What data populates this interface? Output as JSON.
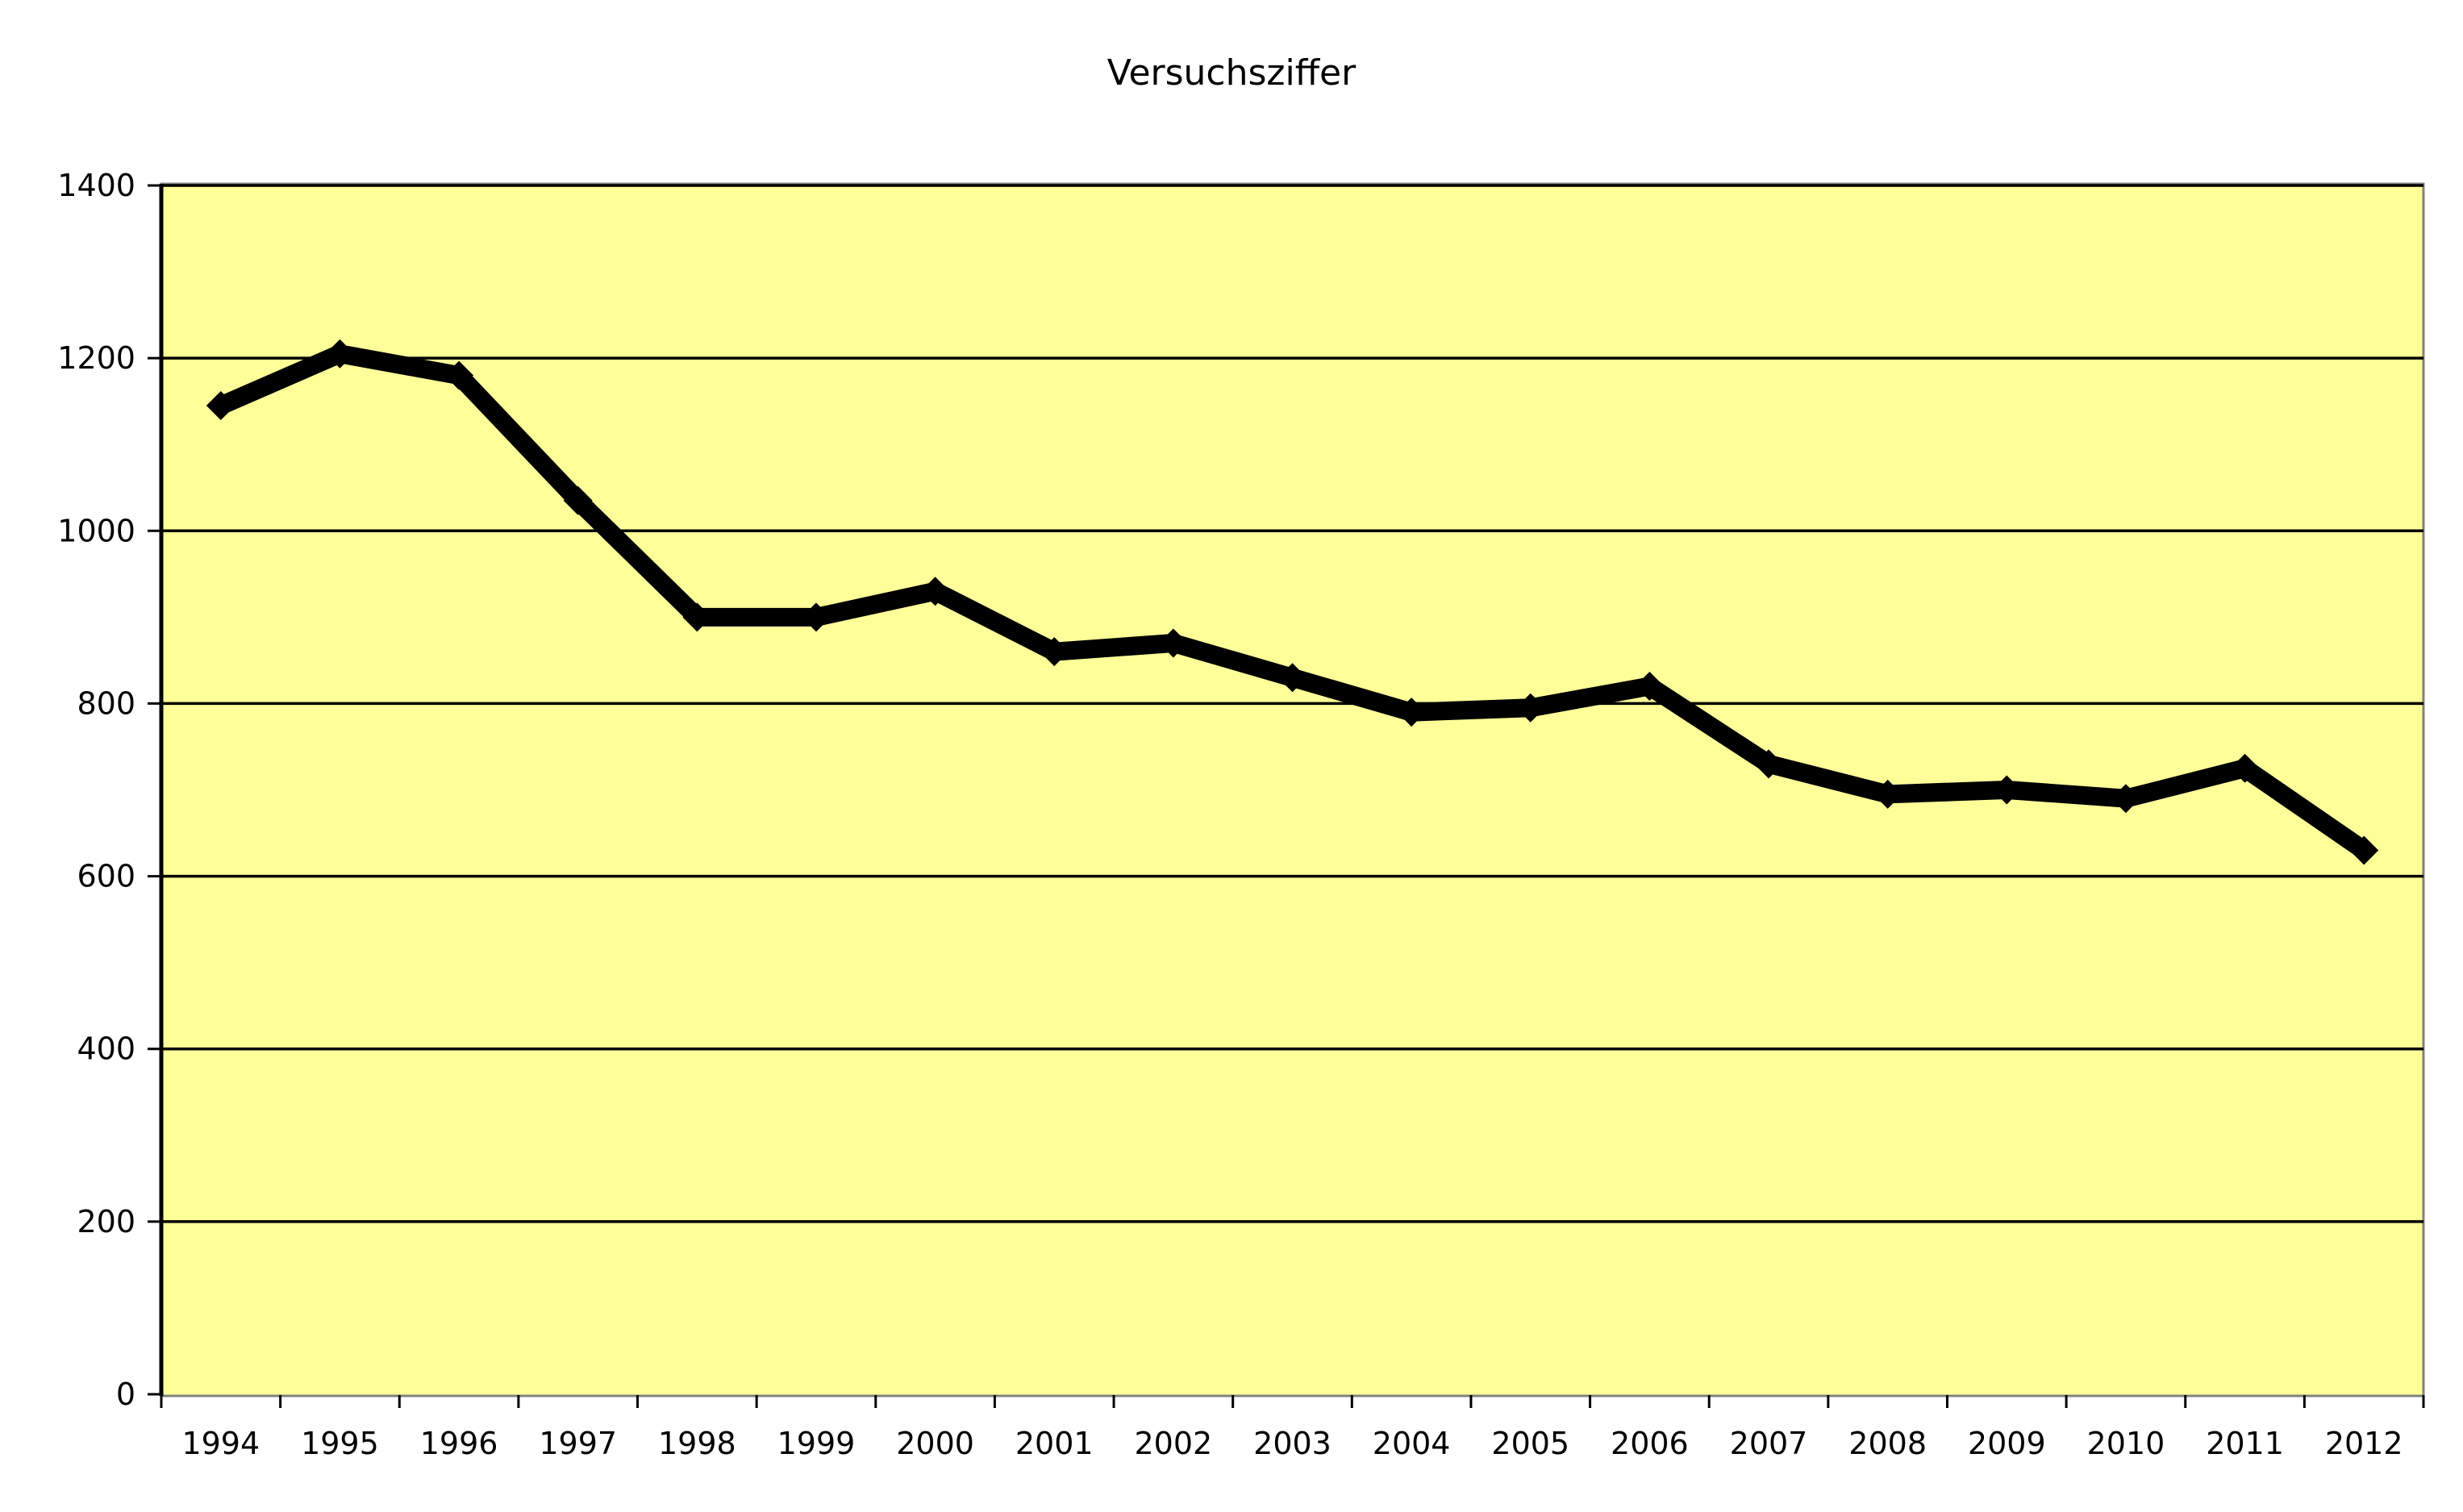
{
  "chart_data": {
    "type": "line",
    "title": "Versuchsziffer",
    "categories": [
      "1994",
      "1995",
      "1996",
      "1997",
      "1998",
      "1999",
      "2000",
      "2001",
      "2002",
      "2003",
      "2004",
      "2005",
      "2006",
      "2007",
      "2008",
      "2009",
      "2010",
      "2011",
      "2012"
    ],
    "values": [
      1145,
      1205,
      1180,
      1035,
      900,
      900,
      930,
      860,
      870,
      830,
      790,
      795,
      820,
      730,
      695,
      700,
      690,
      725,
      630
    ],
    "xlabel": "",
    "ylabel": "",
    "ylim": [
      0,
      1400
    ],
    "yticks": [
      0,
      200,
      400,
      600,
      800,
      1000,
      1200,
      1400
    ],
    "grid": "horizontal",
    "legend": "none",
    "marker": "diamond",
    "colors": {
      "plot_background": "#FFFF99",
      "outer_background": "#FFFFFF",
      "line": "#000000",
      "marker": "#000000",
      "gridline": "#000000",
      "axis": "#000000",
      "plot_border": "#808080",
      "text": "#000000"
    }
  }
}
